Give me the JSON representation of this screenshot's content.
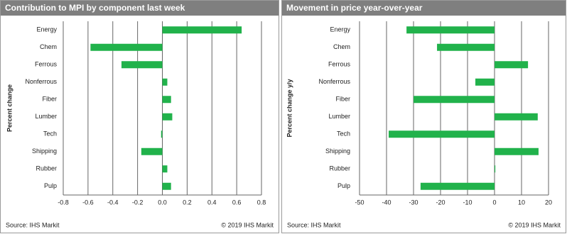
{
  "chart_data": [
    {
      "type": "bar",
      "orientation": "horizontal",
      "title": "Contribution  to MPI by component last week",
      "axis_label": "Percent change",
      "categories": [
        "Energy",
        "Chem",
        "Ferrous",
        "Nonferrous",
        "Fiber",
        "Lumber",
        "Tech",
        "Shipping",
        "Rubber",
        "Pulp"
      ],
      "values": [
        0.64,
        -0.58,
        -0.33,
        0.04,
        0.07,
        0.08,
        -0.01,
        -0.17,
        0.04,
        0.07
      ],
      "color": "#21b24b",
      "xlim": [
        -0.8,
        0.8
      ],
      "xticks": [
        -0.8,
        -0.6,
        -0.4,
        -0.2,
        {
          "value": 0,
          "label": "0.0"
        },
        0.2,
        0.4,
        0.6,
        0.8
      ],
      "grid": true,
      "source": "Source: IHS Markit",
      "copyright": "© 2019 IHS Markit"
    },
    {
      "type": "bar",
      "orientation": "horizontal",
      "title": "Movement in price year-over-year",
      "axis_label": "Percent change y/y",
      "categories": [
        "Energy",
        "Chem",
        "Ferrous",
        "Nonferrous",
        "Fiber",
        "Lumber",
        "Tech",
        "Shipping",
        "Rubber",
        "Pulp"
      ],
      "values": [
        -32.6,
        -21.3,
        12.4,
        -7.1,
        -30,
        16,
        -39.2,
        16.3,
        0.3,
        -27.4
      ],
      "color": "#21b24b",
      "xlim": [
        -50,
        20
      ],
      "xticks": [
        -50,
        -40,
        -30,
        -20,
        -10,
        0,
        10,
        20
      ],
      "grid": true,
      "source": "Source: IHS Markit",
      "copyright": "© 2019 IHS Markit"
    }
  ]
}
